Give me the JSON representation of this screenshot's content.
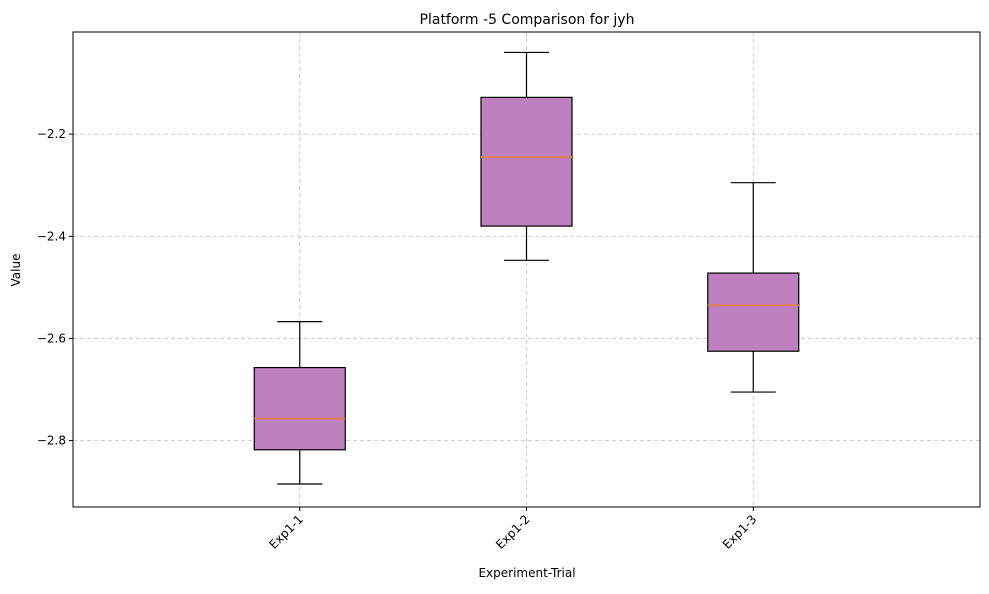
{
  "chart_data": {
    "type": "box",
    "title": "Platform -5 Comparison for jyh",
    "xlabel": "Experiment-Trial",
    "ylabel": "Value",
    "categories": [
      "Exp1-1",
      "Exp1-2",
      "Exp1-3"
    ],
    "boxes": [
      {
        "category": "Exp1-1",
        "whisker_low": -2.885,
        "q1": -2.818,
        "median": -2.757,
        "q3": -2.657,
        "whisker_high": -2.567
      },
      {
        "category": "Exp1-2",
        "whisker_low": -2.447,
        "q1": -2.38,
        "median": -2.245,
        "q3": -2.128,
        "whisker_high": -2.04
      },
      {
        "category": "Exp1-3",
        "whisker_low": -2.705,
        "q1": -2.625,
        "median": -2.535,
        "q3": -2.472,
        "whisker_high": -2.295
      }
    ],
    "ylim": [
      -2.93,
      -2.0
    ],
    "yticks": [
      -2.8,
      -2.6,
      -2.4,
      -2.2
    ],
    "ytick_labels": [
      "−2.8",
      "−2.6",
      "−2.4",
      "−2.2"
    ],
    "xtick_rotation": "45deg",
    "grid": true,
    "grid_style": "dashed",
    "colors": {
      "box_fill": "#bf80bf",
      "box_edge": "#000000",
      "median": "#e0804a",
      "grid": "#c8c8c8"
    }
  }
}
